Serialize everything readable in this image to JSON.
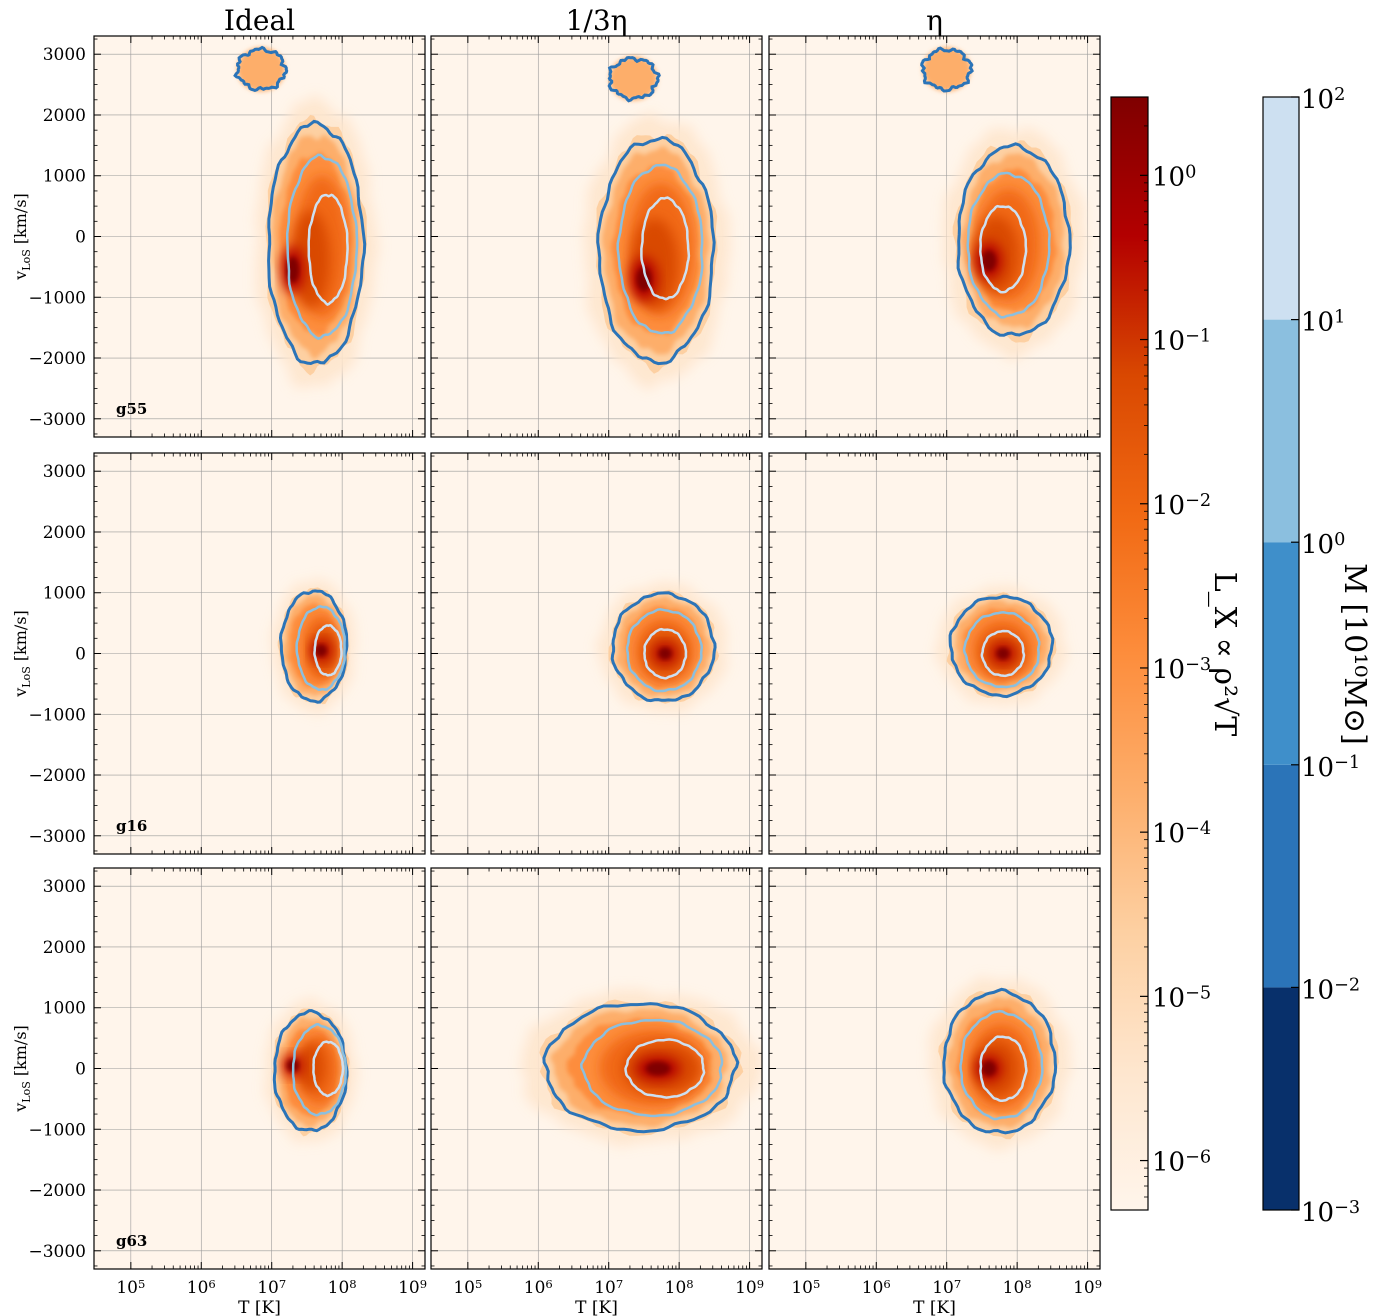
{
  "figure": {
    "columns": [
      "Ideal",
      "1/3η",
      "η"
    ],
    "rows": [
      "g55",
      "g16",
      "g63"
    ],
    "ylabel": "v_LoS [km/s]",
    "xlabel": "T [K]"
  },
  "chart_data": {
    "type": "heatmap",
    "x_scale": "log",
    "x_range_K": [
      30000.0,
      1500000000.0
    ],
    "y_range_kms": [
      -3300,
      3300
    ],
    "x_ticks": [
      "10^5",
      "10^6",
      "10^7",
      "10^8",
      "10^9"
    ],
    "x_tick_values": [
      100000.0,
      1000000.0,
      10000000.0,
      100000000.0,
      1000000000.0
    ],
    "y_ticks": [
      -3000,
      -2000,
      -1000,
      0,
      1000,
      2000,
      3000
    ],
    "grid": true,
    "heat_colorbar": {
      "label": "L_X ∝ ρ²√T",
      "scale": "log",
      "range": [
        5e-07,
        3
      ],
      "ticks": [
        "10^0",
        "10^-1",
        "10^-2",
        "10^-3",
        "10^-4",
        "10^-5",
        "10^-6"
      ],
      "tick_values": [
        1,
        0.1,
        0.01,
        0.001,
        0.0001,
        1e-05,
        1e-06
      ],
      "colormap": [
        "#fff5eb",
        "#fee6ce",
        "#fdd0a2",
        "#fdae6b",
        "#fd8d3c",
        "#f16913",
        "#d94801",
        "#b30000",
        "#7f0000"
      ]
    },
    "contour_colorbar": {
      "label": "M [10¹⁰M⊙]",
      "scale": "log",
      "levels": [
        0.001,
        0.01,
        0.1,
        1,
        10,
        100
      ],
      "ticks": [
        "10^2",
        "10^1",
        "10^0",
        "10^-1",
        "10^-2",
        "10^-3"
      ],
      "colors": [
        "#08306b",
        "#2b74b8",
        "#3f8fca",
        "#8bbfdf",
        "#cde0f1",
        "#f7fbff"
      ]
    },
    "panels": [
      {
        "row": "g55",
        "col": "Ideal",
        "shape": "wide",
        "center_logT": 7.8,
        "center_v": -200,
        "core_logT": 7.3,
        "core_v": -550,
        "extent_logT": [
          6.9,
          8.35
        ],
        "extent_v": [
          -2250,
          2000
        ],
        "satellite": {
          "logT": 6.85,
          "v": 2750
        }
      },
      {
        "row": "g55",
        "col": "1/3η",
        "shape": "wide",
        "center_logT": 7.8,
        "center_v": -200,
        "core_logT": 7.5,
        "core_v": -700,
        "extent_logT": [
          6.8,
          8.55
        ],
        "extent_v": [
          -2200,
          1750
        ],
        "satellite": {
          "logT": 7.35,
          "v": 2600
        }
      },
      {
        "row": "g55",
        "col": "η",
        "shape": "wide",
        "center_logT": 7.8,
        "center_v": -200,
        "core_logT": 7.6,
        "core_v": -400,
        "extent_logT": [
          7.1,
          8.8
        ],
        "extent_v": [
          -1750,
          1600
        ],
        "satellite": {
          "logT": 7.0,
          "v": 2750
        }
      },
      {
        "row": "g16",
        "col": "Ideal",
        "shape": "compact",
        "center_logT": 7.8,
        "center_v": 50,
        "core_logT": 7.7,
        "core_v": 50,
        "extent_logT": [
          7.1,
          8.1
        ],
        "extent_v": [
          -850,
          1100
        ]
      },
      {
        "row": "g16",
        "col": "1/3η",
        "shape": "compact",
        "center_logT": 7.8,
        "center_v": 0,
        "core_logT": 7.8,
        "core_v": 0,
        "extent_logT": [
          7.0,
          8.55
        ],
        "extent_v": [
          -850,
          1050
        ]
      },
      {
        "row": "g16",
        "col": "η",
        "shape": "compact",
        "center_logT": 7.8,
        "center_v": 0,
        "core_logT": 7.8,
        "core_v": 0,
        "extent_logT": [
          7.0,
          8.55
        ],
        "extent_v": [
          -750,
          1000
        ]
      },
      {
        "row": "g63",
        "col": "Ideal",
        "shape": "compact",
        "center_logT": 7.8,
        "center_v": 0,
        "core_logT": 7.3,
        "core_v": 50,
        "extent_logT": [
          7.0,
          8.1
        ],
        "extent_v": [
          -1100,
          1000
        ]
      },
      {
        "row": "g63",
        "col": "1/3η",
        "shape": "elongated",
        "center_logT": 7.8,
        "center_v": 0,
        "core_logT": 7.7,
        "core_v": 0,
        "extent_logT": [
          6.0,
          8.9
        ],
        "extent_v": [
          -1100,
          1150
        ]
      },
      {
        "row": "g63",
        "col": "η",
        "shape": "compact",
        "center_logT": 7.8,
        "center_v": 0,
        "core_logT": 7.6,
        "core_v": 0,
        "extent_logT": [
          6.9,
          8.6
        ],
        "extent_v": [
          -1150,
          1350
        ]
      }
    ]
  }
}
